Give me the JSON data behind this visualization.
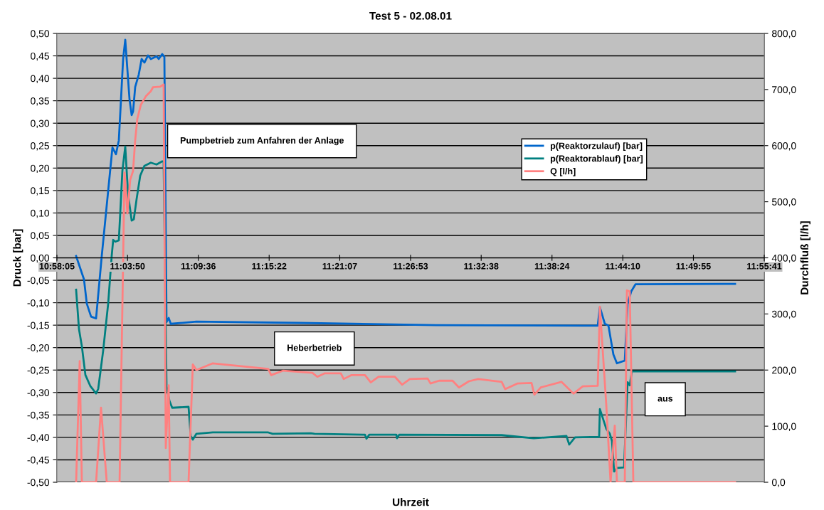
{
  "chart_data": {
    "type": "line",
    "title": "Test 5 - 02.08.01",
    "xlabel": "Uhrzeit",
    "ylabel": "Druck [bar]",
    "y2label": "Durchfluß [l/h]",
    "xlim": [
      10.968056,
      11.928056
    ],
    "xticks": [
      {
        "value": 10.968056,
        "label": "10:58:05"
      },
      {
        "value": 11.063889,
        "label": "11:03:50"
      },
      {
        "value": 11.16,
        "label": "11:09:36"
      },
      {
        "value": 11.256111,
        "label": "11:15:22"
      },
      {
        "value": 11.351944,
        "label": "11:21:07"
      },
      {
        "value": 11.448056,
        "label": "11:26:53"
      },
      {
        "value": 11.543889,
        "label": "11:32:38"
      },
      {
        "value": 11.64,
        "label": "11:38:24"
      },
      {
        "value": 11.736111,
        "label": "11:44:10"
      },
      {
        "value": 11.831944,
        "label": "11:49:55"
      },
      {
        "value": 11.928056,
        "label": "11:55:41"
      }
    ],
    "ylim": [
      -0.5,
      0.5
    ],
    "yticks": [
      {
        "value": -0.5,
        "label": "-0,50"
      },
      {
        "value": -0.45,
        "label": "-0,45"
      },
      {
        "value": -0.4,
        "label": "-0,40"
      },
      {
        "value": -0.35,
        "label": "-0,35"
      },
      {
        "value": -0.3,
        "label": "-0,30"
      },
      {
        "value": -0.25,
        "label": "-0,25"
      },
      {
        "value": -0.2,
        "label": "-0,20"
      },
      {
        "value": -0.15,
        "label": "-0,15"
      },
      {
        "value": -0.1,
        "label": "-0,10"
      },
      {
        "value": -0.05,
        "label": "-0,05"
      },
      {
        "value": 0,
        "label": "0,00"
      },
      {
        "value": 0.05,
        "label": "0,05"
      },
      {
        "value": 0.1,
        "label": "0,10"
      },
      {
        "value": 0.15,
        "label": "0,15"
      },
      {
        "value": 0.2,
        "label": "0,20"
      },
      {
        "value": 0.25,
        "label": "0,25"
      },
      {
        "value": 0.3,
        "label": "0,30"
      },
      {
        "value": 0.35,
        "label": "0,35"
      },
      {
        "value": 0.4,
        "label": "0,40"
      },
      {
        "value": 0.45,
        "label": "0,45"
      },
      {
        "value": 0.5,
        "label": "0,50"
      }
    ],
    "y2lim": [
      0,
      800
    ],
    "y2ticks": [
      {
        "value": 0,
        "label": "0,0"
      },
      {
        "value": 100,
        "label": "100,0"
      },
      {
        "value": 200,
        "label": "200,0"
      },
      {
        "value": 300,
        "label": "300,0"
      },
      {
        "value": 400,
        "label": "400,0"
      },
      {
        "value": 500,
        "label": "500,0"
      },
      {
        "value": 600,
        "label": "600,0"
      },
      {
        "value": 700,
        "label": "700,0"
      },
      {
        "value": 800,
        "label": "800,0"
      }
    ],
    "grid": "y",
    "legend": "top right",
    "marker": "none",
    "line_style": "solid",
    "annotations": [
      "Pumpbetrieb zum Anfahren der Anlage",
      "Heberbetrieb",
      "aus"
    ],
    "series": [
      {
        "name": "p(Reaktorzulauf) [bar]",
        "color": "#0066cc",
        "x": [
          10.9941,
          10.998,
          11.0048,
          11.0086,
          11.0144,
          11.0212,
          11.0289,
          11.0434,
          11.0482,
          11.0521,
          11.0579,
          11.0608,
          11.0666,
          11.0695,
          11.0714,
          11.0743,
          11.0791,
          11.083,
          11.0868,
          11.0917,
          11.0955,
          11.1033,
          11.1062,
          11.111,
          11.1139,
          11.1168,
          11.1197,
          11.1226,
          11.1574,
          11.2974,
          11.4828,
          11.6827,
          11.7021,
          11.705,
          11.7117,
          11.7166,
          11.7233,
          11.7281,
          11.7388,
          11.7426,
          11.7475,
          11.7533,
          11.8885
        ],
        "values": [
          0.004,
          -0.015,
          -0.048,
          -0.102,
          -0.131,
          -0.135,
          0.004,
          0.246,
          0.231,
          0.262,
          0.443,
          0.486,
          0.353,
          0.318,
          0.326,
          0.381,
          0.408,
          0.443,
          0.435,
          0.451,
          0.443,
          0.449,
          0.443,
          0.454,
          0.448,
          -0.143,
          -0.134,
          -0.147,
          -0.142,
          -0.145,
          -0.15,
          -0.151,
          -0.151,
          -0.11,
          -0.147,
          -0.151,
          -0.215,
          -0.235,
          -0.229,
          -0.102,
          -0.075,
          -0.059,
          -0.058
        ]
      },
      {
        "name": "p(Reaktorablauf) [bar]",
        "color": "#008080",
        "x": [
          10.9941,
          10.998,
          11.0019,
          11.0067,
          11.0135,
          11.0212,
          11.0241,
          11.0308,
          11.0376,
          11.0424,
          11.0444,
          11.0473,
          11.0521,
          11.0569,
          11.0608,
          11.0646,
          11.0695,
          11.0724,
          11.0762,
          11.0811,
          11.0868,
          11.0955,
          11.1033,
          11.111,
          11.1129,
          11.1168,
          11.1207,
          11.1245,
          11.1467,
          11.1496,
          11.1525,
          11.1574,
          11.1796,
          11.2549,
          11.2607,
          11.3128,
          11.3177,
          11.3862,
          11.3882,
          11.392,
          11.4287,
          11.4297,
          11.4326,
          11.5717,
          11.6151,
          11.6596,
          11.6634,
          11.6712,
          11.6924,
          11.704,
          11.705,
          11.7137,
          11.7185,
          11.7214,
          11.7243,
          11.7281,
          11.7378,
          11.7426,
          11.7455,
          11.7484,
          11.8885
        ],
        "values": [
          -0.071,
          -0.159,
          -0.197,
          -0.261,
          -0.286,
          -0.302,
          -0.292,
          -0.207,
          -0.102,
          0.004,
          0.04,
          0.036,
          0.039,
          0.194,
          0.248,
          0.142,
          0.083,
          0.086,
          0.131,
          0.183,
          0.205,
          0.212,
          0.208,
          0.215,
          0.215,
          -0.286,
          -0.318,
          -0.334,
          -0.332,
          -0.397,
          -0.405,
          -0.392,
          -0.389,
          -0.389,
          -0.392,
          -0.391,
          -0.392,
          -0.394,
          -0.403,
          -0.394,
          -0.394,
          -0.402,
          -0.394,
          -0.395,
          -0.402,
          -0.397,
          -0.416,
          -0.4,
          -0.399,
          -0.399,
          -0.337,
          -0.381,
          -0.392,
          -0.408,
          -0.476,
          -0.468,
          -0.467,
          -0.277,
          -0.284,
          -0.253,
          -0.253
        ]
      },
      {
        "name": "Q [l/h]",
        "color": "#ff8080",
        "axis": "y2",
        "x": [
          10.9941,
          10.999,
          11.0019,
          11.0212,
          11.0279,
          11.0357,
          11.0531,
          11.0598,
          11.0637,
          11.0675,
          11.0714,
          11.0743,
          11.0772,
          11.082,
          11.0888,
          11.0955,
          11.0984,
          11.1081,
          11.1129,
          11.1158,
          11.1197,
          11.1216,
          11.1467,
          11.1525,
          11.1574,
          11.1796,
          11.2549,
          11.2588,
          11.2752,
          11.3148,
          11.3215,
          11.3312,
          11.3534,
          11.3573,
          11.3679,
          11.3862,
          11.394,
          11.4046,
          11.4268,
          11.4365,
          11.4471,
          11.4712,
          11.4751,
          11.4867,
          11.505,
          11.5137,
          11.5273,
          11.5398,
          11.5717,
          11.5765,
          11.5929,
          11.6122,
          11.6161,
          11.6248,
          11.6528,
          11.6692,
          11.6818,
          11.7021,
          11.705,
          11.7137,
          11.7195,
          11.7252,
          11.7281,
          11.7388,
          11.7417,
          11.7455,
          11.7504,
          11.8885
        ],
        "values": [
          0,
          216,
          0,
          0,
          133,
          0,
          0,
          552,
          479,
          539,
          555,
          610,
          648,
          673,
          688,
          697,
          704,
          705,
          709,
          61,
          173,
          0,
          0,
          210,
          200,
          212,
          202,
          191,
          199,
          195,
          188,
          194,
          194,
          184,
          191,
          191,
          178,
          188,
          188,
          174,
          184,
          185,
          176,
          181,
          181,
          169,
          180,
          184,
          179,
          166,
          176,
          177,
          156,
          169,
          179,
          158,
          171,
          172,
          313,
          137,
          0,
          101,
          0,
          0,
          342,
          340,
          0,
          0
        ]
      }
    ]
  }
}
